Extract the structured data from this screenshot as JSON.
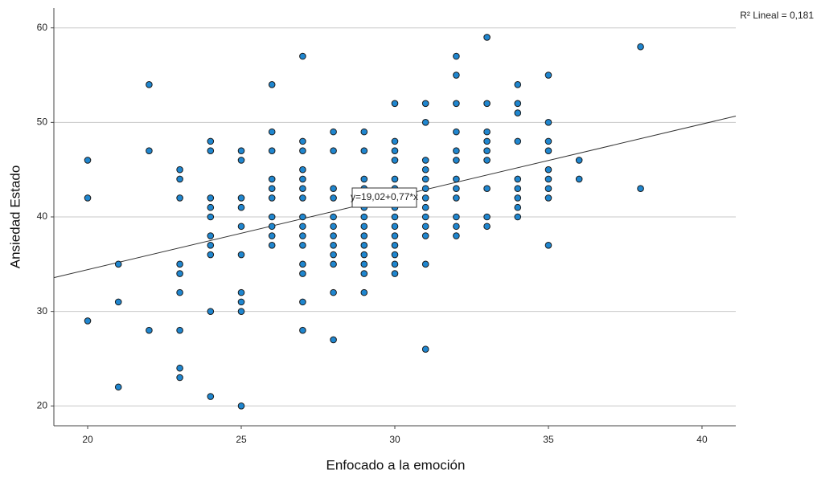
{
  "chart_data": {
    "type": "scatter",
    "xlabel": "Enfocado a la emoción",
    "ylabel": "Ansiedad Estado",
    "fit_label": "y=19,02+0,77*x",
    "r2_label": "R² Lineal = 0,181",
    "fit": {
      "intercept": 19.02,
      "slope": 0.77
    },
    "color": "#1f86cf",
    "edge_color": "#1a1a1a",
    "grid": true,
    "xlim": [
      18.9,
      41.1
    ],
    "ylim": [
      17.9,
      62.1
    ],
    "xticks": [
      20,
      25,
      30,
      35,
      40
    ],
    "yticks": [
      20,
      30,
      40,
      50,
      60
    ],
    "x": [
      20,
      20,
      20,
      21,
      21,
      21,
      22,
      22,
      22,
      23,
      23,
      23,
      23,
      23,
      23,
      23,
      23,
      23,
      24,
      24,
      24,
      24,
      24,
      24,
      24,
      24,
      24,
      24,
      25,
      25,
      25,
      25,
      25,
      25,
      25,
      25,
      25,
      25,
      26,
      26,
      26,
      26,
      26,
      26,
      26,
      26,
      26,
      26,
      27,
      27,
      27,
      27,
      27,
      27,
      27,
      27,
      27,
      27,
      27,
      27,
      27,
      27,
      27,
      28,
      28,
      28,
      28,
      28,
      28,
      28,
      28,
      28,
      28,
      28,
      28,
      29,
      29,
      29,
      29,
      29,
      29,
      29,
      29,
      29,
      29,
      29,
      29,
      29,
      29,
      30,
      30,
      30,
      30,
      30,
      30,
      30,
      30,
      30,
      30,
      30,
      30,
      30,
      30,
      30,
      31,
      31,
      31,
      31,
      31,
      31,
      31,
      31,
      31,
      31,
      31,
      31,
      31,
      32,
      32,
      32,
      32,
      32,
      32,
      32,
      32,
      32,
      32,
      32,
      32,
      33,
      33,
      33,
      33,
      33,
      33,
      33,
      33,
      33,
      34,
      34,
      34,
      34,
      34,
      34,
      34,
      34,
      34,
      35,
      35,
      35,
      35,
      35,
      35,
      35,
      35,
      35,
      36,
      36,
      38,
      38
    ],
    "y": [
      46,
      42,
      29,
      35,
      31,
      22,
      54,
      47,
      28,
      45,
      44,
      42,
      35,
      34,
      32,
      28,
      24,
      23,
      48,
      47,
      42,
      41,
      40,
      38,
      37,
      36,
      30,
      21,
      47,
      46,
      42,
      41,
      39,
      36,
      32,
      31,
      30,
      20,
      54,
      49,
      47,
      44,
      43,
      42,
      40,
      39,
      38,
      37,
      57,
      48,
      47,
      45,
      44,
      43,
      42,
      40,
      39,
      38,
      37,
      35,
      34,
      31,
      28,
      49,
      47,
      43,
      42,
      40,
      39,
      38,
      37,
      36,
      35,
      32,
      27,
      49,
      47,
      44,
      43,
      42,
      41,
      40,
      39,
      38,
      37,
      36,
      35,
      34,
      32,
      52,
      48,
      47,
      46,
      44,
      43,
      42,
      41,
      40,
      39,
      38,
      37,
      36,
      35,
      34,
      52,
      50,
      46,
      45,
      44,
      43,
      42,
      41,
      40,
      39,
      38,
      35,
      26,
      57,
      55,
      52,
      49,
      47,
      46,
      44,
      43,
      42,
      40,
      39,
      38,
      59,
      52,
      49,
      48,
      47,
      46,
      43,
      40,
      39,
      54,
      52,
      51,
      48,
      44,
      43,
      42,
      41,
      40,
      55,
      50,
      48,
      47,
      45,
      44,
      43,
      42,
      37,
      46,
      44,
      58,
      43
    ]
  }
}
